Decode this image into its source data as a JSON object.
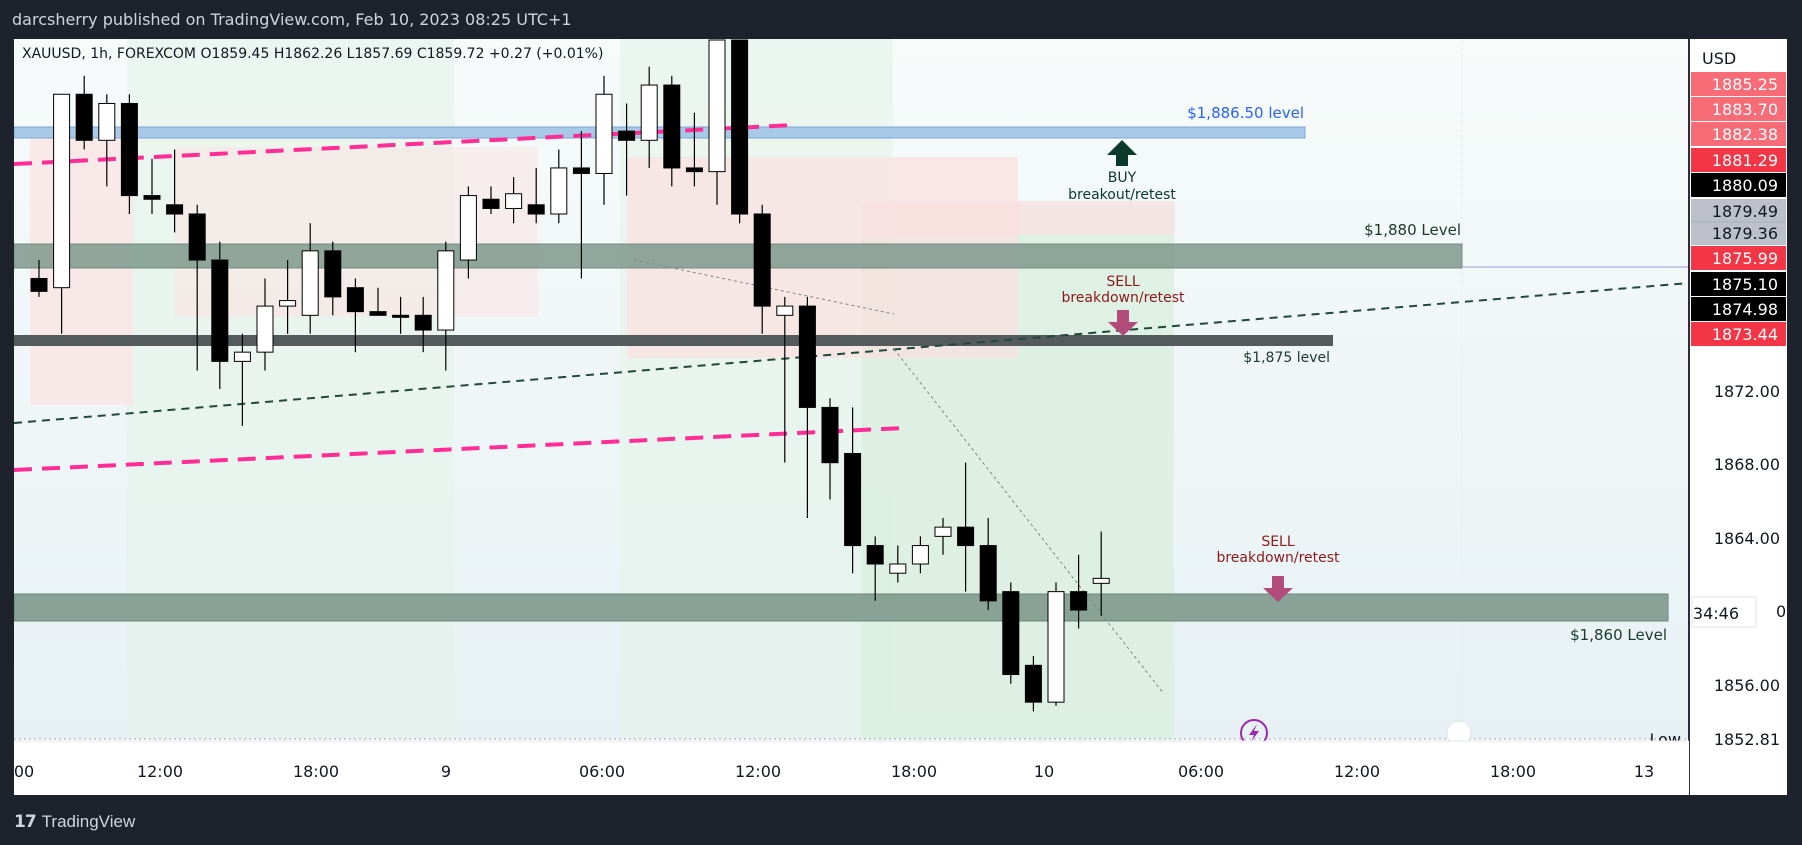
{
  "header": {
    "publisher_line": "darcsherry published on TradingView.com, Feb 10, 2023 08:25 UTC+1"
  },
  "footer": {
    "logo_text": "TradingView"
  },
  "chart_data": {
    "type": "candlestick",
    "symbol_line": "XAUUSD, 1h, FOREXCOM  O1859.45  H1862.26  L1857.69  C1859.72  +0.27 (+0.01%)",
    "currency": "USD",
    "y_scale": {
      "min": 1851,
      "max": 1889
    },
    "y_axis_ticks": [
      "1872.00",
      "1868.00",
      "1864.00",
      "1856.00"
    ],
    "x_axis_ticks": [
      "00",
      "12:00",
      "18:00",
      "9",
      "06:00",
      "12:00",
      "18:00",
      "10",
      "06:00",
      "12:00",
      "18:00",
      "13"
    ],
    "price_badges": [
      {
        "text": "1885.25",
        "bg": "#f7525f",
        "light": true
      },
      {
        "text": "1883.70",
        "bg": "#f7525f",
        "light": true
      },
      {
        "text": "1882.38",
        "bg": "#f7525f",
        "light": true
      },
      {
        "text": "1881.29",
        "bg": "#f23645",
        "light": false
      },
      {
        "text": "1880.09",
        "bg": "#000000",
        "light": false
      },
      {
        "text": "1879.49",
        "bg": "#b2b5be",
        "light": true
      },
      {
        "text": "1879.36",
        "bg": "#b2b5be",
        "light": true
      },
      {
        "text": "1875.99",
        "bg": "#f23645",
        "light": false
      },
      {
        "text": "1875.10",
        "bg": "#000000",
        "light": false
      },
      {
        "text": "1874.98",
        "bg": "#000000",
        "light": false
      },
      {
        "text": "1873.44",
        "bg": "#f23645",
        "light": false
      }
    ],
    "countdown": "34:46",
    "countdown_edge": "0",
    "low_label": "Low",
    "low_value": "1852.81",
    "levels": [
      {
        "label": "$1,886.50 level",
        "color": "#2962ff",
        "price": 1886.5
      },
      {
        "label": "$1,880 Level",
        "color": "#1b3a2a",
        "price": 1880
      },
      {
        "label": "$1,875 level",
        "color": "#1b3a2a",
        "price": 1875
      },
      {
        "label": "$1,860 Level",
        "color": "#1b3a2a",
        "price": 1860
      }
    ],
    "annotations": [
      {
        "title": "BUY",
        "subtitle": "breakout/retest",
        "color": "#0b3a2a"
      },
      {
        "title": "SELL",
        "subtitle": "breakdown/retest",
        "color": "#8b1a1a"
      },
      {
        "title": "SELL",
        "subtitle": "breakdown/retest",
        "color": "#8b1a1a"
      }
    ],
    "candles": [
      {
        "o": 1876.0,
        "h": 1877.0,
        "l": 1875.0,
        "c": 1875.3
      },
      {
        "o": 1875.5,
        "h": 1886.0,
        "l": 1873.0,
        "c": 1886.0
      },
      {
        "o": 1886.0,
        "h": 1887.0,
        "l": 1883.0,
        "c": 1883.5
      },
      {
        "o": 1883.5,
        "h": 1886.0,
        "l": 1881.0,
        "c": 1885.5
      },
      {
        "o": 1885.5,
        "h": 1886.0,
        "l": 1879.5,
        "c": 1880.5
      },
      {
        "o": 1880.5,
        "h": 1882.5,
        "l": 1879.5,
        "c": 1880.3
      },
      {
        "o": 1880.0,
        "h": 1883.0,
        "l": 1878.5,
        "c": 1879.5
      },
      {
        "o": 1879.5,
        "h": 1880.0,
        "l": 1871.0,
        "c": 1877.0
      },
      {
        "o": 1877.0,
        "h": 1878.0,
        "l": 1870.0,
        "c": 1871.5
      },
      {
        "o": 1871.5,
        "h": 1873.0,
        "l": 1868.0,
        "c": 1872.0
      },
      {
        "o": 1872.0,
        "h": 1876.0,
        "l": 1871.0,
        "c": 1874.5
      },
      {
        "o": 1874.5,
        "h": 1877.0,
        "l": 1873.0,
        "c": 1874.8
      },
      {
        "o": 1874.0,
        "h": 1879.0,
        "l": 1873.0,
        "c": 1877.5
      },
      {
        "o": 1877.5,
        "h": 1878.0,
        "l": 1874.0,
        "c": 1875.0
      },
      {
        "o": 1875.5,
        "h": 1876.0,
        "l": 1872.0,
        "c": 1874.2
      },
      {
        "o": 1874.2,
        "h": 1875.5,
        "l": 1874.0,
        "c": 1874.0
      },
      {
        "o": 1874.0,
        "h": 1875.0,
        "l": 1873.0,
        "c": 1873.9
      },
      {
        "o": 1874.0,
        "h": 1875.0,
        "l": 1872.0,
        "c": 1873.2
      },
      {
        "o": 1873.2,
        "h": 1878.0,
        "l": 1871.0,
        "c": 1877.5
      },
      {
        "o": 1877.0,
        "h": 1881.0,
        "l": 1876.0,
        "c": 1880.5
      },
      {
        "o": 1880.3,
        "h": 1881.0,
        "l": 1879.5,
        "c": 1879.8
      },
      {
        "o": 1879.8,
        "h": 1881.5,
        "l": 1879.0,
        "c": 1880.6
      },
      {
        "o": 1880.0,
        "h": 1882.0,
        "l": 1879.0,
        "c": 1879.5
      },
      {
        "o": 1879.5,
        "h": 1883.0,
        "l": 1879.0,
        "c": 1882.0
      },
      {
        "o": 1882.0,
        "h": 1884.0,
        "l": 1876.0,
        "c": 1881.7
      },
      {
        "o": 1881.7,
        "h": 1887.0,
        "l": 1880.0,
        "c": 1886.0
      },
      {
        "o": 1884.0,
        "h": 1885.5,
        "l": 1880.5,
        "c": 1883.5
      },
      {
        "o": 1883.5,
        "h": 1887.5,
        "l": 1882.0,
        "c": 1886.5
      },
      {
        "o": 1886.5,
        "h": 1887.0,
        "l": 1881.0,
        "c": 1882.0
      },
      {
        "o": 1882.0,
        "h": 1885.0,
        "l": 1881.0,
        "c": 1881.8
      },
      {
        "o": 1881.8,
        "h": 1893.0,
        "l": 1880.0,
        "c": 1892.0
      },
      {
        "o": 1892.0,
        "h": 1893.0,
        "l": 1879.0,
        "c": 1879.5
      },
      {
        "o": 1879.5,
        "h": 1880.0,
        "l": 1873.0,
        "c": 1874.5
      },
      {
        "o": 1874.0,
        "h": 1875.0,
        "l": 1866.0,
        "c": 1874.5
      },
      {
        "o": 1874.5,
        "h": 1875.0,
        "l": 1863.0,
        "c": 1869.0
      },
      {
        "o": 1869.0,
        "h": 1869.5,
        "l": 1864.0,
        "c": 1866.0
      },
      {
        "o": 1866.5,
        "h": 1869.0,
        "l": 1860.0,
        "c": 1861.5
      },
      {
        "o": 1861.5,
        "h": 1862.0,
        "l": 1858.5,
        "c": 1860.5
      },
      {
        "o": 1860.0,
        "h": 1861.5,
        "l": 1859.5,
        "c": 1860.5
      },
      {
        "o": 1860.5,
        "h": 1862.0,
        "l": 1860.0,
        "c": 1861.5
      },
      {
        "o": 1862.0,
        "h": 1863.0,
        "l": 1861.0,
        "c": 1862.5
      },
      {
        "o": 1862.5,
        "h": 1866.0,
        "l": 1859.0,
        "c": 1861.5
      },
      {
        "o": 1861.5,
        "h": 1863.0,
        "l": 1858.0,
        "c": 1858.5
      },
      {
        "o": 1859.0,
        "h": 1859.5,
        "l": 1854.0,
        "c": 1854.5
      },
      {
        "o": 1855.0,
        "h": 1855.5,
        "l": 1852.5,
        "c": 1853.0
      },
      {
        "o": 1853.0,
        "h": 1859.5,
        "l": 1852.8,
        "c": 1859.0
      },
      {
        "o": 1859.0,
        "h": 1861.0,
        "l": 1857.0,
        "c": 1858.0
      },
      {
        "o": 1859.45,
        "h": 1862.26,
        "l": 1857.69,
        "c": 1859.72
      }
    ]
  }
}
